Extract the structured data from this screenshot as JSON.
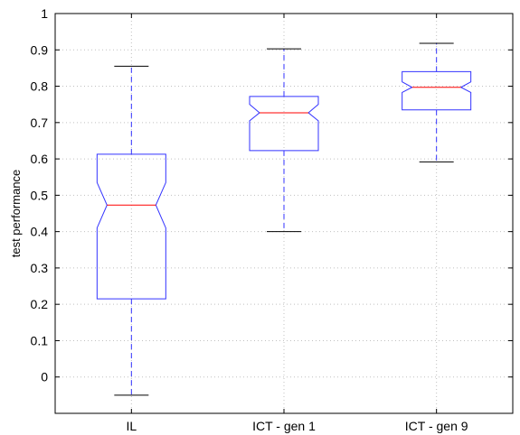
{
  "chart_data": {
    "type": "boxplot",
    "title": "",
    "xlabel": "",
    "ylabel": "test performance",
    "ylim": [
      -0.1,
      1.0
    ],
    "yticks": [
      0,
      0.1,
      0.2,
      0.3,
      0.4,
      0.5,
      0.6,
      0.7,
      0.8,
      0.9,
      1
    ],
    "ytick_labels": [
      "0",
      "0.1",
      "0.2",
      "0.3",
      "0.4",
      "0.5",
      "0.6",
      "0.7",
      "0.8",
      "0.9",
      "1"
    ],
    "categories": [
      "IL",
      "ICT - gen 1",
      "ICT - gen 9"
    ],
    "boxes": [
      {
        "whisker_low": -0.05,
        "q1": 0.215,
        "median": 0.473,
        "q3": 0.613,
        "whisker_high": 0.855,
        "notch_low": 0.41,
        "notch_high": 0.535
      },
      {
        "whisker_low": 0.4,
        "q1": 0.623,
        "median": 0.727,
        "q3": 0.772,
        "whisker_high": 0.903,
        "notch_low": 0.705,
        "notch_high": 0.75
      },
      {
        "whisker_low": 0.592,
        "q1": 0.735,
        "median": 0.797,
        "q3": 0.84,
        "whisker_high": 0.918,
        "notch_low": 0.783,
        "notch_high": 0.812
      }
    ],
    "grid": true,
    "colors": {
      "box": "#3333ff",
      "median": "#ff0000",
      "whisker_cap": "#000000",
      "grid": "#c0c0c0",
      "axes": "#000000"
    }
  }
}
